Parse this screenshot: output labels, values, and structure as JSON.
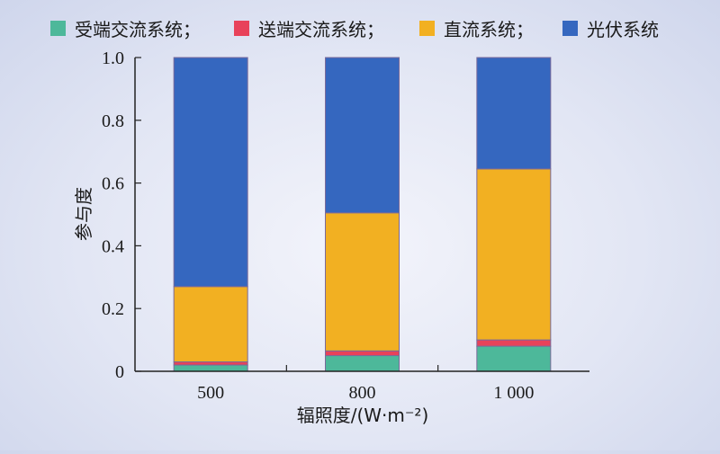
{
  "chart_data": {
    "type": "bar",
    "stacked": true,
    "categories": [
      "500",
      "800",
      "1 000"
    ],
    "series": [
      {
        "name": "受端交流系统",
        "color": "#4db89a",
        "values": [
          0.02,
          0.05,
          0.08
        ]
      },
      {
        "name": "送端交流系统",
        "color": "#e8425a",
        "values": [
          0.01,
          0.015,
          0.02
        ]
      },
      {
        "name": "直流系统",
        "color": "#f2b022",
        "values": [
          0.24,
          0.44,
          0.545
        ]
      },
      {
        "name": "光伏系统",
        "color": "#3567bf",
        "values": [
          0.73,
          0.495,
          0.355
        ]
      }
    ],
    "legend_labels": [
      "受端交流系统；",
      "送端交流系统；",
      "直流系统；",
      "光伏系统"
    ],
    "xlabel": "辐照度/(W·m⁻²)",
    "ylabel": "参与度",
    "ylim": [
      0,
      1.0
    ],
    "yticks": [
      "0",
      "0.2",
      "0.4",
      "0.6",
      "0.8",
      "1.0"
    ],
    "legend_position": "top",
    "grid": false
  }
}
